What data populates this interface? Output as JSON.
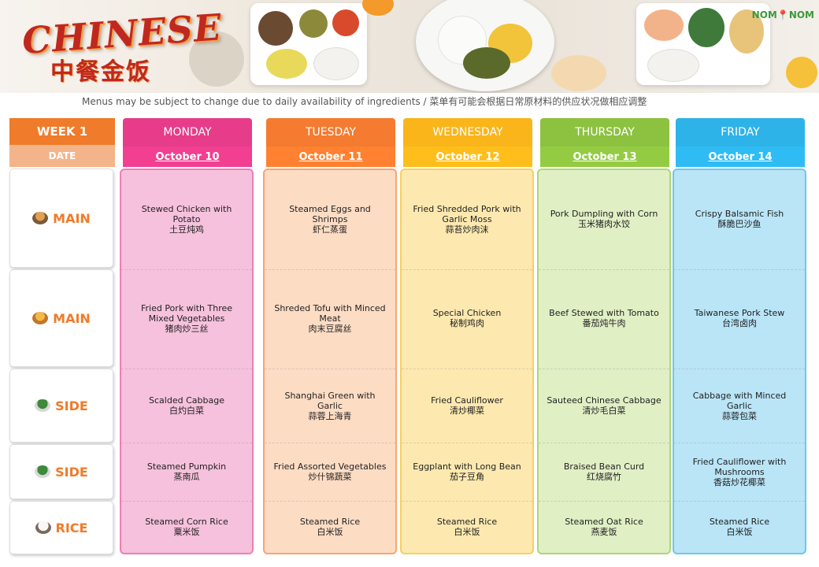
{
  "brand": {
    "title": "CHINESE",
    "subtitle": "中餐金饭",
    "logo_left": "NOM",
    "logo_right": "NOM"
  },
  "notice": "Menus may be subject to change due to daily availability of ingredients / 菜单有可能会根据日常原材料的供应状况做相应调整",
  "week_label": "WEEK 1",
  "date_label": "DATE",
  "row_labels": [
    {
      "label": "MAIN",
      "icon": "food-bowl-icon"
    },
    {
      "label": "MAIN",
      "icon": "fries-icon"
    },
    {
      "label": "SIDE",
      "icon": "greens-icon"
    },
    {
      "label": "SIDE",
      "icon": "greens-icon"
    },
    {
      "label": "RICE",
      "icon": "rice-bowl-icon"
    }
  ],
  "days": [
    {
      "name": "MONDAY",
      "date": "October 10",
      "head_color": "#e63c8a",
      "body_color": "#f6c1dc",
      "border_color": "#ee7fb6",
      "items": [
        {
          "en": "Stewed Chicken with Potato",
          "zh": "土豆炖鸡"
        },
        {
          "en": "Fried Pork with Three Mixed Vegetables",
          "zh": "猪肉炒三丝"
        },
        {
          "en": "Scalded Cabbage",
          "zh": "白灼白菜"
        },
        {
          "en": "Steamed Pumpkin",
          "zh": "蒸南瓜"
        },
        {
          "en": "Steamed Corn Rice",
          "zh": "粟米饭"
        }
      ]
    },
    {
      "name": "TUESDAY",
      "date": "October 11",
      "head_color": "#f47b2f",
      "body_color": "#fddcc4",
      "border_color": "#f6a572",
      "items": [
        {
          "en": "Steamed Eggs and Shrimps",
          "zh": "虾仁蒸蛋"
        },
        {
          "en": "Shreded Tofu with Minced Meat",
          "zh": "肉末豆腐丝"
        },
        {
          "en": "Shanghai Green with Garlic",
          "zh": "蒜蓉上海青"
        },
        {
          "en": "Fried Assorted Vegetables",
          "zh": "炒什锦蔬菜"
        },
        {
          "en": "Steamed Rice",
          "zh": "白米饭"
        }
      ]
    },
    {
      "name": "WEDNESDAY",
      "date": "October 12",
      "head_color": "#f9b51a",
      "body_color": "#fde9b0",
      "border_color": "#f9ce62",
      "items": [
        {
          "en": "Fried Shredded Pork with Garlic Moss",
          "zh": "蒜苔炒肉沫"
        },
        {
          "en": "Special Chicken",
          "zh": "秘制鸡肉"
        },
        {
          "en": "Fried Cauliflower",
          "zh": "清炒椰菜"
        },
        {
          "en": "Eggplant with Long Bean",
          "zh": "茄子豆角"
        },
        {
          "en": "Steamed Rice",
          "zh": "白米饭"
        }
      ]
    },
    {
      "name": "THURSDAY",
      "date": "October 13",
      "head_color": "#8cc23f",
      "body_color": "#e1efc5",
      "border_color": "#b0d67a",
      "items": [
        {
          "en": "Pork Dumpling with Corn",
          "zh": "玉米猪肉水饺"
        },
        {
          "en": "Beef Stewed with Tomato",
          "zh": "番茄炖牛肉"
        },
        {
          "en": "Sauteed Chinese Cabbage",
          "zh": "清炒毛白菜"
        },
        {
          "en": "Braised Bean Curd",
          "zh": "红烧腐竹"
        },
        {
          "en": "Steamed Oat Rice",
          "zh": "燕麦饭"
        }
      ]
    },
    {
      "name": "FRIDAY",
      "date": "October 14",
      "head_color": "#2db3e8",
      "body_color": "#b9e5f7",
      "border_color": "#6cc8ee",
      "items": [
        {
          "en": "Crispy Balsamic Fish",
          "zh": "酥脆巴沙鱼"
        },
        {
          "en": "Taiwanese Pork Stew",
          "zh": "台湾卤肉"
        },
        {
          "en": "Cabbage with Minced Garlic",
          "zh": "蒜蓉包菜"
        },
        {
          "en": "Fried Cauliflower with Mushrooms",
          "zh": "香菇炒花椰菜"
        },
        {
          "en": "Steamed Rice",
          "zh": "白米饭"
        }
      ]
    }
  ]
}
